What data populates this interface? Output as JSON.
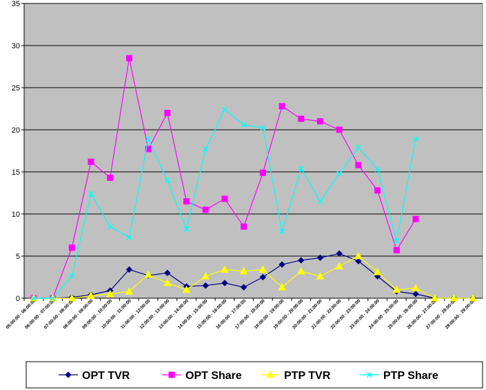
{
  "chart_data": {
    "type": "line",
    "title": "",
    "xlabel": "",
    "ylabel": "",
    "ylim": [
      0,
      35
    ],
    "yticks": [
      "0",
      "5",
      "10",
      "15",
      "20",
      "25",
      "30",
      "35"
    ],
    "grid": true,
    "legend_position": "bottom",
    "categories": [
      "05:00:00 - 06:00:00",
      "06:00:00 - 07:00:00",
      "07:00:00 - 08:00:00",
      "08:00:00 - 09:00:00",
      "09:00:00 - 10:00:00",
      "10:00:00 - 11:00:00",
      "11:00:00 - 12:00:00",
      "12:00:00 - 13:00:00",
      "13:00:00 - 14:00:00",
      "14:00:00 - 15:00:00",
      "15:00:00 - 16:00:00",
      "16:00:00 - 17:00:00",
      "17:00:00 - 18:00:00",
      "18:00:00 - 19:00:00",
      "19:00:00 - 20:00:00",
      "20:00:00 - 21:00:00",
      "21:00:00 - 22:00:00",
      "22:00:00 - 23:00:00",
      "23:00:00 - 24:00:00",
      "24:00:00 - 25:00:00",
      "25:00:00 - 26:00:00",
      "26:00:00 - 27:00:00",
      "27:00:00 - 28:00:00",
      "28:00:00 - 29:00:00"
    ],
    "series": [
      {
        "name": "OPT TVR",
        "color": "#000080",
        "marker": "diamond",
        "values": [
          0,
          0,
          0.1,
          0.4,
          0.9,
          3.4,
          2.7,
          3.0,
          1.4,
          1.5,
          1.8,
          1.3,
          2.5,
          4.0,
          4.5,
          4.8,
          5.3,
          4.4,
          2.6,
          0.8,
          0.5,
          0,
          0,
          0
        ]
      },
      {
        "name": "OPT Share",
        "color": "#FF00FF",
        "marker": "square",
        "values": [
          0,
          0,
          6.0,
          16.2,
          14.3,
          28.5,
          17.7,
          22.0,
          11.5,
          10.5,
          11.8,
          8.5,
          14.9,
          22.8,
          21.3,
          21.0,
          20.0,
          15.8,
          12.8,
          5.7,
          9.4,
          null,
          null,
          null
        ]
      },
      {
        "name": "PTP TVR",
        "color": "#FFFF00",
        "marker": "triangle",
        "values": [
          0,
          0,
          0,
          0.3,
          0.5,
          0.8,
          2.8,
          1.8,
          1.0,
          2.6,
          3.4,
          3.2,
          3.4,
          1.3,
          3.2,
          2.6,
          3.8,
          5.0,
          3.1,
          1.0,
          1.2,
          0,
          0,
          0
        ]
      },
      {
        "name": "PTP Share",
        "color": "#00FFFF",
        "marker": "x",
        "values": [
          0,
          0,
          2.6,
          12.4,
          8.5,
          7.2,
          18.9,
          14.0,
          8.2,
          17.7,
          22.4,
          20.6,
          20.2,
          7.9,
          15.4,
          11.5,
          14.8,
          17.9,
          15.3,
          6.8,
          18.9,
          null,
          null,
          null
        ]
      }
    ]
  }
}
